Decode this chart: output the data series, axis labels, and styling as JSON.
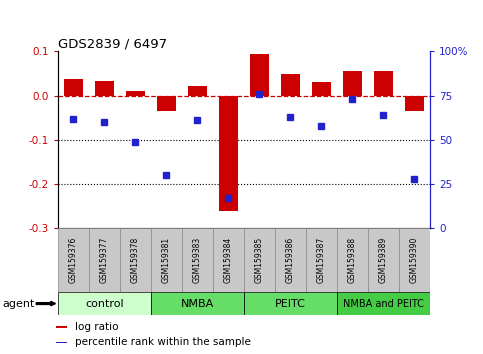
{
  "title": "GDS2839 / 6497",
  "samples": [
    "GSM159376",
    "GSM159377",
    "GSM159378",
    "GSM159381",
    "GSM159383",
    "GSM159384",
    "GSM159385",
    "GSM159386",
    "GSM159387",
    "GSM159388",
    "GSM159389",
    "GSM159390"
  ],
  "log_ratio": [
    0.038,
    0.032,
    0.01,
    -0.035,
    0.022,
    -0.26,
    0.095,
    0.048,
    0.03,
    0.055,
    0.055,
    -0.035
  ],
  "percentile_rank": [
    62,
    60,
    49,
    30,
    61,
    17,
    76,
    63,
    58,
    73,
    64,
    28
  ],
  "bar_color": "#cc0000",
  "dot_color": "#2222cc",
  "dashed_line_color": "#cc0000",
  "dotted_line_color": "#000000",
  "ylim_left": [
    -0.3,
    0.1
  ],
  "ylim_right": [
    0,
    100
  ],
  "yticks_left": [
    -0.3,
    -0.2,
    -0.1,
    0.0,
    0.1
  ],
  "yticks_right": [
    0,
    25,
    50,
    75,
    100
  ],
  "ytick_labels_right": [
    "0",
    "25",
    "50",
    "75",
    "100%"
  ],
  "groups": [
    {
      "label": "control",
      "start": 0,
      "end": 3,
      "color": "#ccffcc"
    },
    {
      "label": "NMBA",
      "start": 3,
      "end": 6,
      "color": "#66dd66"
    },
    {
      "label": "PEITC",
      "start": 6,
      "end": 9,
      "color": "#66dd66"
    },
    {
      "label": "NMBA and PEITC",
      "start": 9,
      "end": 12,
      "color": "#44cc44"
    }
  ],
  "agent_label": "agent",
  "legend_items": [
    {
      "color": "#cc0000",
      "label": "log ratio"
    },
    {
      "color": "#2222cc",
      "label": "percentile rank within the sample"
    }
  ],
  "sample_box_color": "#c8c8c8",
  "sample_box_edge": "#888888"
}
